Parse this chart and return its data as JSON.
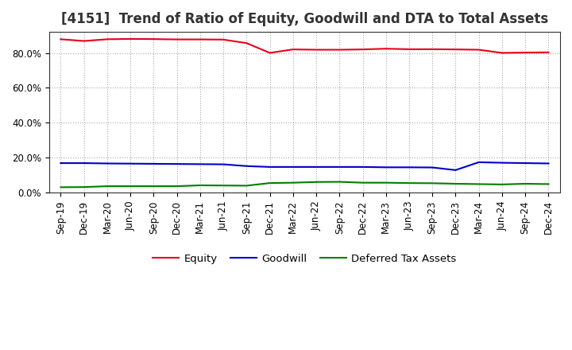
{
  "title": "[4151]  Trend of Ratio of Equity, Goodwill and DTA to Total Assets",
  "x_labels": [
    "Sep-19",
    "Dec-19",
    "Mar-20",
    "Jun-20",
    "Sep-20",
    "Dec-20",
    "Mar-21",
    "Jun-21",
    "Sep-21",
    "Dec-21",
    "Mar-22",
    "Jun-22",
    "Sep-22",
    "Dec-22",
    "Mar-23",
    "Jun-23",
    "Sep-23",
    "Dec-23",
    "Mar-24",
    "Jun-24",
    "Sep-24",
    "Dec-24"
  ],
  "equity": [
    0.878,
    0.868,
    0.878,
    0.88,
    0.879,
    0.877,
    0.877,
    0.876,
    0.856,
    0.8,
    0.82,
    0.818,
    0.818,
    0.82,
    0.824,
    0.821,
    0.821,
    0.82,
    0.818,
    0.8,
    0.802,
    0.803
  ],
  "goodwill": [
    0.17,
    0.17,
    0.168,
    0.167,
    0.166,
    0.165,
    0.164,
    0.163,
    0.153,
    0.148,
    0.148,
    0.148,
    0.148,
    0.148,
    0.146,
    0.146,
    0.145,
    0.13,
    0.175,
    0.172,
    0.17,
    0.168
  ],
  "dta": [
    0.032,
    0.033,
    0.038,
    0.038,
    0.038,
    0.038,
    0.043,
    0.042,
    0.041,
    0.056,
    0.058,
    0.062,
    0.063,
    0.058,
    0.058,
    0.056,
    0.055,
    0.052,
    0.05,
    0.048,
    0.052,
    0.05
  ],
  "equity_color": "#e8001c",
  "goodwill_color": "#0000cc",
  "dta_color": "#008000",
  "ylim": [
    0.0,
    0.92
  ],
  "yticks": [
    0.0,
    0.2,
    0.4,
    0.6,
    0.8
  ],
  "ytick_labels": [
    "0.0%",
    "20.0%",
    "40.0%",
    "60.0%",
    "80.0%"
  ],
  "bg_color": "#ffffff",
  "plot_bg_color": "#ffffff",
  "grid_color": "#aaaaaa",
  "legend_labels": [
    "Equity",
    "Goodwill",
    "Deferred Tax Assets"
  ],
  "title_fontsize": 12,
  "tick_fontsize": 8.5,
  "legend_fontsize": 9.5
}
